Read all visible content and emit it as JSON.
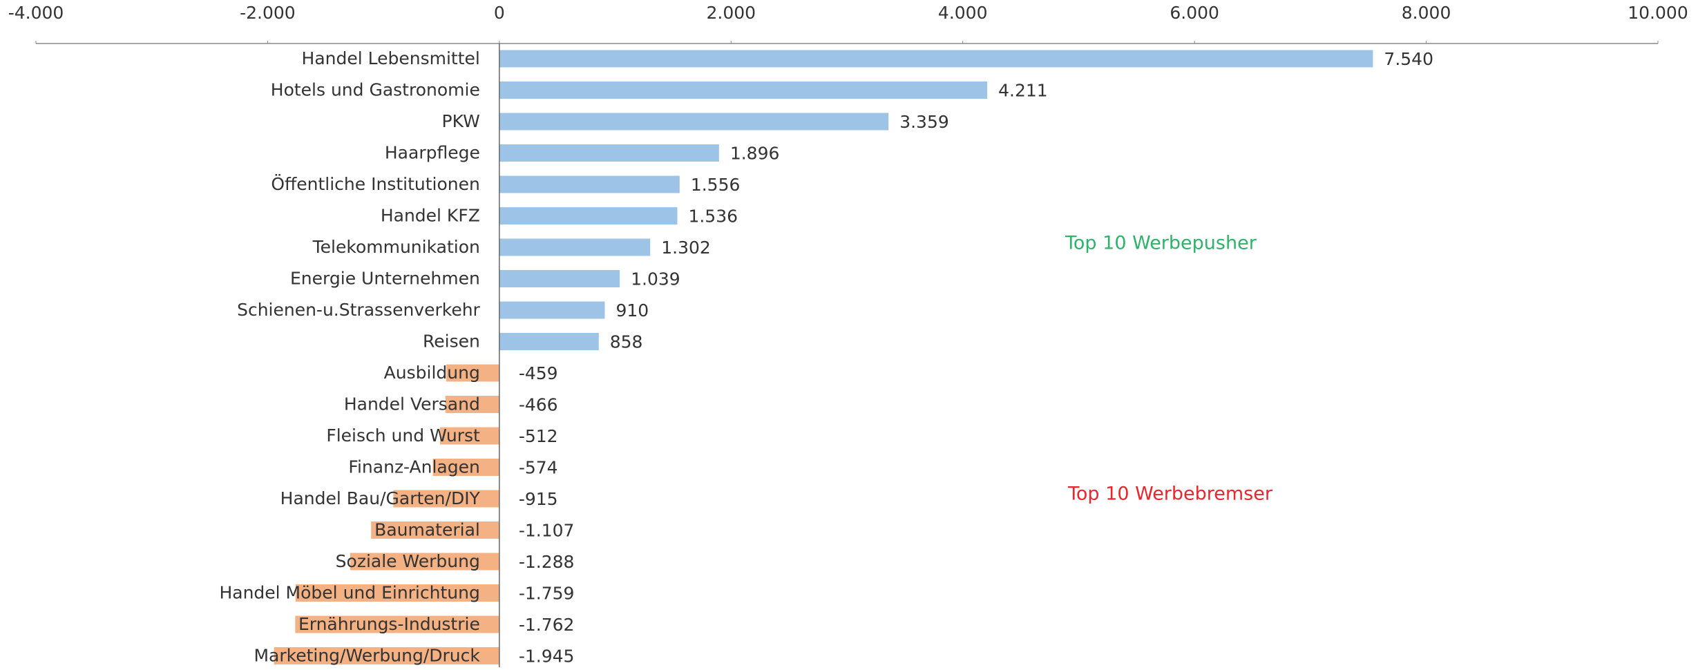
{
  "chart_data": {
    "type": "hbar",
    "categories": [
      "Handel Lebensmittel",
      "Hotels und Gastronomie",
      "PKW",
      "Haarpflege",
      "Öffentliche Institutionen",
      "Handel KFZ",
      "Telekommunikation",
      "Energie Unternehmen",
      "Schienen-u.Strassenverkehr",
      "Reisen",
      "Ausbildung",
      "Handel Versand",
      "Fleisch und Wurst",
      "Finanz-Anlagen",
      "Handel Bau/Garten/DIY",
      "Baumaterial",
      "Soziale  Werbung",
      "Handel Möbel und Einrichtung",
      "Ernährungs-Industrie",
      "Marketing/Werbung/Druck"
    ],
    "values": [
      7540,
      4211,
      3359,
      1896,
      1556,
      1536,
      1302,
      1039,
      910,
      858,
      -459,
      -466,
      -512,
      -574,
      -915,
      -1107,
      -1288,
      -1759,
      -1762,
      -1945
    ],
    "value_labels": [
      "7.540",
      "4.211",
      "3.359",
      "1.896",
      "1.556",
      "1.536",
      "1.302",
      "1.039",
      "910",
      "858",
      "-459",
      "-466",
      "-512",
      "-574",
      "-915",
      "-1.107",
      "-1.288",
      "-1.759",
      "-1.762",
      "-1.945"
    ],
    "color": "#9dc3e6",
    "negative_color": "#f4b183",
    "xlim": [
      -4000,
      10000
    ],
    "xticks": [
      {
        "value": -4000,
        "label": "-4.000"
      },
      {
        "value": -2000,
        "label": "-2.000"
      },
      0,
      {
        "value": 2000,
        "label": "2.000"
      },
      {
        "value": 4000,
        "label": "4.000"
      },
      {
        "value": 6000,
        "label": "6.000"
      },
      {
        "value": 8000,
        "label": "8.000"
      },
      {
        "value": 10000,
        "label": "10.000"
      }
    ],
    "annotations": [
      {
        "text": "Top 10 Werbepusher",
        "color": "#2eb36a"
      },
      {
        "text": "Top 10 Werbebremser",
        "color": "#e8262d"
      }
    ]
  }
}
